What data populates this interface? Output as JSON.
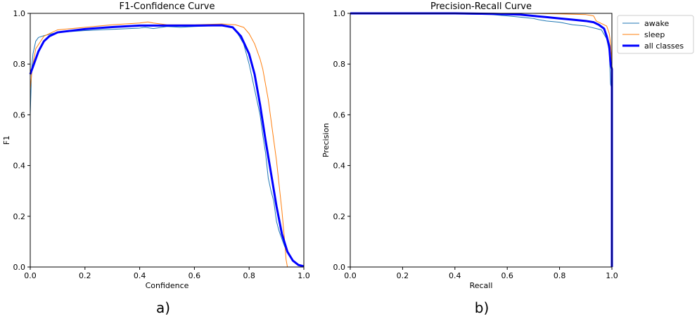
{
  "captions": {
    "left": "a)",
    "right": "b)"
  },
  "legend": {
    "placement": "outside-right",
    "entries": [
      {
        "name": "awake",
        "color": "#1f77b4"
      },
      {
        "name": "sleep",
        "color": "#ff7f0e"
      },
      {
        "name": "all classes",
        "color": "#0000ff"
      }
    ]
  },
  "chart_data": [
    {
      "type": "line",
      "title": "F1-Confidence Curve",
      "xlabel": "Confidence",
      "ylabel": "F1",
      "xlim": [
        0,
        1
      ],
      "ylim": [
        0,
        1
      ],
      "xticks": [
        "0.0",
        "0.2",
        "0.4",
        "0.6",
        "0.8",
        "1.0"
      ],
      "yticks": [
        "0.0",
        "0.2",
        "0.4",
        "0.6",
        "0.8",
        "1.0"
      ],
      "grid": false,
      "series": [
        {
          "name": "awake",
          "color": "#1f77b4",
          "width": 1,
          "x": [
            0,
            0.005,
            0.01,
            0.02,
            0.03,
            0.05,
            0.08,
            0.1,
            0.2,
            0.3,
            0.4,
            0.42,
            0.45,
            0.5,
            0.55,
            0.6,
            0.65,
            0.7,
            0.73,
            0.75,
            0.78,
            0.8,
            0.82,
            0.84,
            0.85,
            0.86,
            0.87,
            0.88,
            0.89,
            0.9,
            0.91,
            0.92,
            0.93,
            0.95,
            0.97,
            0.99,
            1.0
          ],
          "y": [
            0.6,
            0.78,
            0.84,
            0.89,
            0.905,
            0.912,
            0.92,
            0.925,
            0.932,
            0.937,
            0.942,
            0.945,
            0.94,
            0.948,
            0.945,
            0.948,
            0.95,
            0.952,
            0.95,
            0.935,
            0.88,
            0.8,
            0.7,
            0.6,
            0.52,
            0.45,
            0.35,
            0.3,
            0.26,
            0.18,
            0.14,
            0.11,
            0.08,
            0.04,
            0.015,
            0.005,
            0.0
          ]
        },
        {
          "name": "sleep",
          "color": "#ff7f0e",
          "width": 1,
          "x": [
            0,
            0.005,
            0.01,
            0.02,
            0.05,
            0.08,
            0.1,
            0.2,
            0.3,
            0.4,
            0.43,
            0.45,
            0.5,
            0.6,
            0.7,
            0.75,
            0.78,
            0.8,
            0.82,
            0.84,
            0.85,
            0.86,
            0.87,
            0.88,
            0.89,
            0.9,
            0.91,
            0.92,
            0.93,
            0.935,
            0.94
          ],
          "y": [
            0.7,
            0.76,
            0.8,
            0.86,
            0.91,
            0.925,
            0.935,
            0.945,
            0.955,
            0.962,
            0.966,
            0.962,
            0.955,
            0.955,
            0.958,
            0.955,
            0.945,
            0.92,
            0.88,
            0.82,
            0.78,
            0.72,
            0.66,
            0.58,
            0.5,
            0.42,
            0.32,
            0.22,
            0.1,
            0.03,
            0.0
          ]
        },
        {
          "name": "all classes",
          "color": "#0000ff",
          "width": 3,
          "x": [
            0,
            0.01,
            0.02,
            0.03,
            0.05,
            0.07,
            0.1,
            0.2,
            0.3,
            0.4,
            0.5,
            0.6,
            0.7,
            0.74,
            0.77,
            0.8,
            0.82,
            0.84,
            0.86,
            0.88,
            0.9,
            0.92,
            0.94,
            0.96,
            0.98,
            1.0
          ],
          "y": [
            0.76,
            0.79,
            0.82,
            0.85,
            0.89,
            0.91,
            0.925,
            0.938,
            0.946,
            0.952,
            0.952,
            0.952,
            0.953,
            0.945,
            0.91,
            0.84,
            0.76,
            0.64,
            0.5,
            0.37,
            0.24,
            0.13,
            0.06,
            0.025,
            0.008,
            0.003
          ]
        }
      ]
    },
    {
      "type": "line",
      "title": "Precision-Recall Curve",
      "xlabel": "Recall",
      "ylabel": "Precision",
      "xlim": [
        0,
        1
      ],
      "ylim": [
        0,
        1
      ],
      "xticks": [
        "0.0",
        "0.2",
        "0.4",
        "0.6",
        "0.8",
        "1.0"
      ],
      "yticks": [
        "0.0",
        "0.2",
        "0.4",
        "0.6",
        "0.8",
        "1.0"
      ],
      "grid": false,
      "series": [
        {
          "name": "awake",
          "color": "#1f77b4",
          "width": 1,
          "x": [
            0,
            0.3,
            0.54,
            0.6,
            0.65,
            0.7,
            0.72,
            0.75,
            0.8,
            0.85,
            0.9,
            0.94,
            0.96,
            0.98,
            0.99,
            0.995,
            1.0,
            1.0
          ],
          "y": [
            1.0,
            1.0,
            0.995,
            0.99,
            0.985,
            0.98,
            0.975,
            0.97,
            0.965,
            0.955,
            0.95,
            0.94,
            0.935,
            0.9,
            0.85,
            0.72,
            0.7,
            0.0
          ]
        },
        {
          "name": "sleep",
          "color": "#ff7f0e",
          "width": 1,
          "x": [
            0,
            0.5,
            0.7,
            0.8,
            0.9,
            0.93,
            0.94,
            0.96,
            0.98,
            0.99,
            0.995,
            1.0,
            1.0
          ],
          "y": [
            1.0,
            1.0,
            1.0,
            0.998,
            0.995,
            0.99,
            0.97,
            0.96,
            0.95,
            0.92,
            0.88,
            0.8,
            0.0
          ]
        },
        {
          "name": "all classes",
          "color": "#0000ff",
          "width": 3,
          "x": [
            0,
            0.4,
            0.55,
            0.65,
            0.7,
            0.75,
            0.8,
            0.85,
            0.9,
            0.93,
            0.95,
            0.97,
            0.98,
            0.99,
            0.995,
            1.0,
            1.0
          ],
          "y": [
            1.0,
            1.0,
            0.998,
            0.995,
            0.99,
            0.985,
            0.98,
            0.975,
            0.97,
            0.965,
            0.955,
            0.94,
            0.91,
            0.87,
            0.8,
            0.78,
            0.0
          ]
        }
      ]
    }
  ]
}
